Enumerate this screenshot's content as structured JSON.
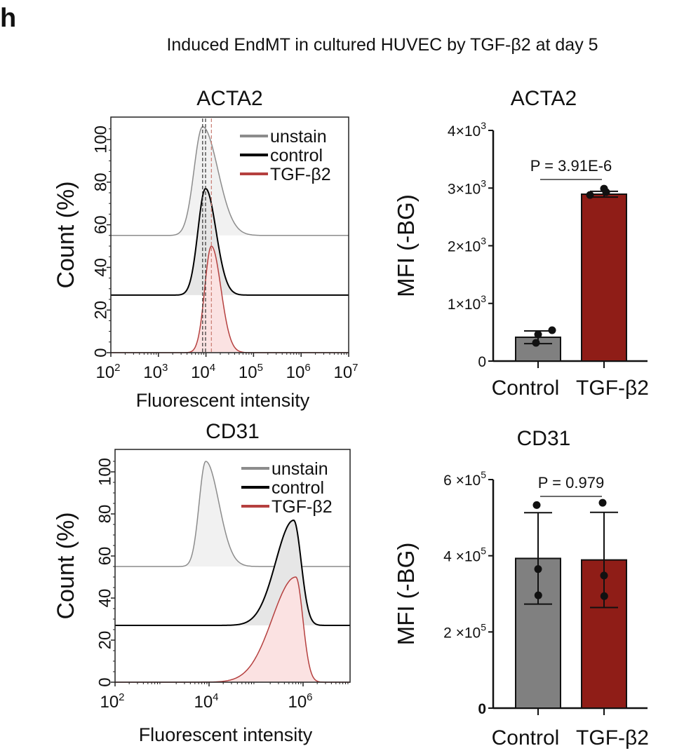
{
  "panel_letter": "h",
  "figure_title": "Induced EndMT in cultured HUVEC by TGF-β2 at day 5",
  "colors": {
    "unstain": "#8c8c8c",
    "control": "#000000",
    "tgf": "#b5403f",
    "control_bar": "#808080",
    "tgf_bar": "#8f1d17"
  },
  "chart_data": [
    {
      "type": "area",
      "title": "ACTA2",
      "xlabel": "Fluorescent intensity",
      "ylabel": "Count (%)",
      "xscale": "log",
      "xlim": [
        100,
        10000000
      ],
      "ylim": [
        0,
        110
      ],
      "xticks": [
        {
          "v": 2,
          "label": "10"
        },
        {
          "v": 3,
          "label": "10"
        },
        {
          "v": 4,
          "label": "10"
        },
        {
          "v": 5,
          "label": "10"
        },
        {
          "v": 6,
          "label": "10"
        },
        {
          "v": 7,
          "label": "10"
        }
      ],
      "yticks": [
        "0",
        "20",
        "40",
        "60",
        "80",
        "100"
      ],
      "legend": [
        "unstain",
        "control",
        "TGF-β2"
      ],
      "legend_position": "top-right",
      "median_lines": [
        8500,
        9800,
        13000
      ],
      "series": [
        {
          "name": "unstain",
          "peak_intensity": 8500,
          "peak_count": 51,
          "offset": 55,
          "spread_left": 0.18,
          "spread_right": 0.32
        },
        {
          "name": "control",
          "peak_intensity": 9800,
          "peak_count": 50,
          "offset": 27,
          "spread_left": 0.16,
          "spread_right": 0.22
        },
        {
          "name": "TGF-β2",
          "peak_intensity": 13000,
          "peak_count": 50,
          "offset": 0,
          "spread_left": 0.14,
          "spread_right": 0.2
        }
      ]
    },
    {
      "type": "bar",
      "title": "ACTA2",
      "ylabel": "MFI (-BG)",
      "ylim": [
        0,
        4000
      ],
      "yticks": [
        {
          "v": 0,
          "base": "0",
          "exp": ""
        },
        {
          "v": 1000,
          "base": "1×10",
          "exp": "3"
        },
        {
          "v": 2000,
          "base": "2×10",
          "exp": "3"
        },
        {
          "v": 3000,
          "base": "3×10",
          "exp": "3"
        },
        {
          "v": 4000,
          "base": "4×10",
          "exp": "3"
        }
      ],
      "categories": [
        "Control",
        "TGF-β2"
      ],
      "values": [
        413,
        2894
      ],
      "sd": [
        110,
        50
      ],
      "points": [
        [
          535,
          462,
          316
        ],
        [
          2880,
          2990,
          2930
        ]
      ],
      "pvalue": "P = 3.91E-6"
    },
    {
      "type": "area",
      "title": "CD31",
      "xlabel": "Fluorescent intensity",
      "ylabel": "Count (%)",
      "xscale": "log",
      "xlim": [
        100,
        10000000
      ],
      "ylim": [
        0,
        110
      ],
      "xticks": [
        {
          "v": 2,
          "label": "10"
        },
        {
          "v": 4,
          "label": "10"
        },
        {
          "v": 6,
          "label": "10"
        }
      ],
      "yticks": [
        "0",
        "20",
        "40",
        "60",
        "80",
        "100"
      ],
      "legend": [
        "unstain",
        "control",
        "TGF-β2"
      ],
      "legend_position": "top-right",
      "series": [
        {
          "name": "unstain",
          "peak_intensity": 8500,
          "peak_count": 50,
          "offset": 55,
          "spread_left": 0.14,
          "spread_right": 0.28
        },
        {
          "name": "control",
          "peak_intensity": 630000,
          "peak_count": 50,
          "offset": 27,
          "spread_left": 0.38,
          "spread_right": 0.16
        },
        {
          "name": "TGF-β2",
          "peak_intensity": 700000,
          "peak_count": 50,
          "offset": 0,
          "spread_left": 0.5,
          "spread_right": 0.15
        }
      ]
    },
    {
      "type": "bar",
      "title": "CD31",
      "ylabel": "MFI (-BG)",
      "ylim": [
        0,
        600000
      ],
      "yticks": [
        {
          "v": 0,
          "base": "0",
          "exp": ""
        },
        {
          "v": 200000,
          "base": "2 ×10",
          "exp": "5"
        },
        {
          "v": 400000,
          "base": "4 ×10",
          "exp": "5"
        },
        {
          "v": 600000,
          "base": "6 ×10",
          "exp": "5"
        }
      ],
      "categories": [
        "Control",
        "TGF-β2"
      ],
      "values": [
        393000,
        389000
      ],
      "sd": [
        120000,
        125000
      ],
      "points": [
        [
          533000,
          365000,
          296000
        ],
        [
          539000,
          348000,
          294000
        ]
      ],
      "pvalue": "P = 0.979"
    }
  ]
}
